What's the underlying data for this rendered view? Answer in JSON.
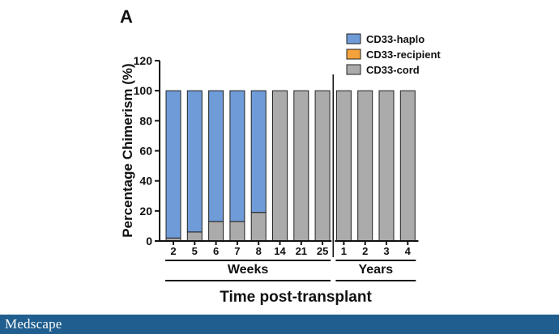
{
  "chart_data": {
    "type": "bar",
    "stacked": true,
    "panel_label": "A",
    "ylabel": "Percentage Chimerism (%)",
    "ylim": [
      0,
      120
    ],
    "yticks": [
      0,
      20,
      40,
      60,
      80,
      100,
      120
    ],
    "xlabel": "Time post-transplant",
    "groups": [
      {
        "label": "Weeks",
        "categories": [
          "2",
          "5",
          "6",
          "7",
          "8",
          "14",
          "21",
          "25"
        ]
      },
      {
        "label": "Years",
        "categories": [
          "1",
          "2",
          "3",
          "4"
        ]
      }
    ],
    "legend": {
      "position": "top-right"
    },
    "series": [
      {
        "name": "CD33-haplo",
        "color": "#6f9bd8",
        "values": [
          98,
          94,
          87,
          87,
          81,
          0,
          0,
          0,
          0,
          0,
          0,
          0
        ]
      },
      {
        "name": "CD33-recipient",
        "color": "#f4a23c",
        "values": [
          0,
          0,
          0,
          0,
          0,
          0,
          0,
          0,
          0,
          0,
          0,
          0
        ]
      },
      {
        "name": "CD33-cord",
        "color": "#ababab",
        "values": [
          2,
          6,
          13,
          13,
          19,
          100,
          100,
          100,
          100,
          100,
          100,
          100
        ]
      }
    ]
  },
  "footer": {
    "logo": "Medscape"
  }
}
